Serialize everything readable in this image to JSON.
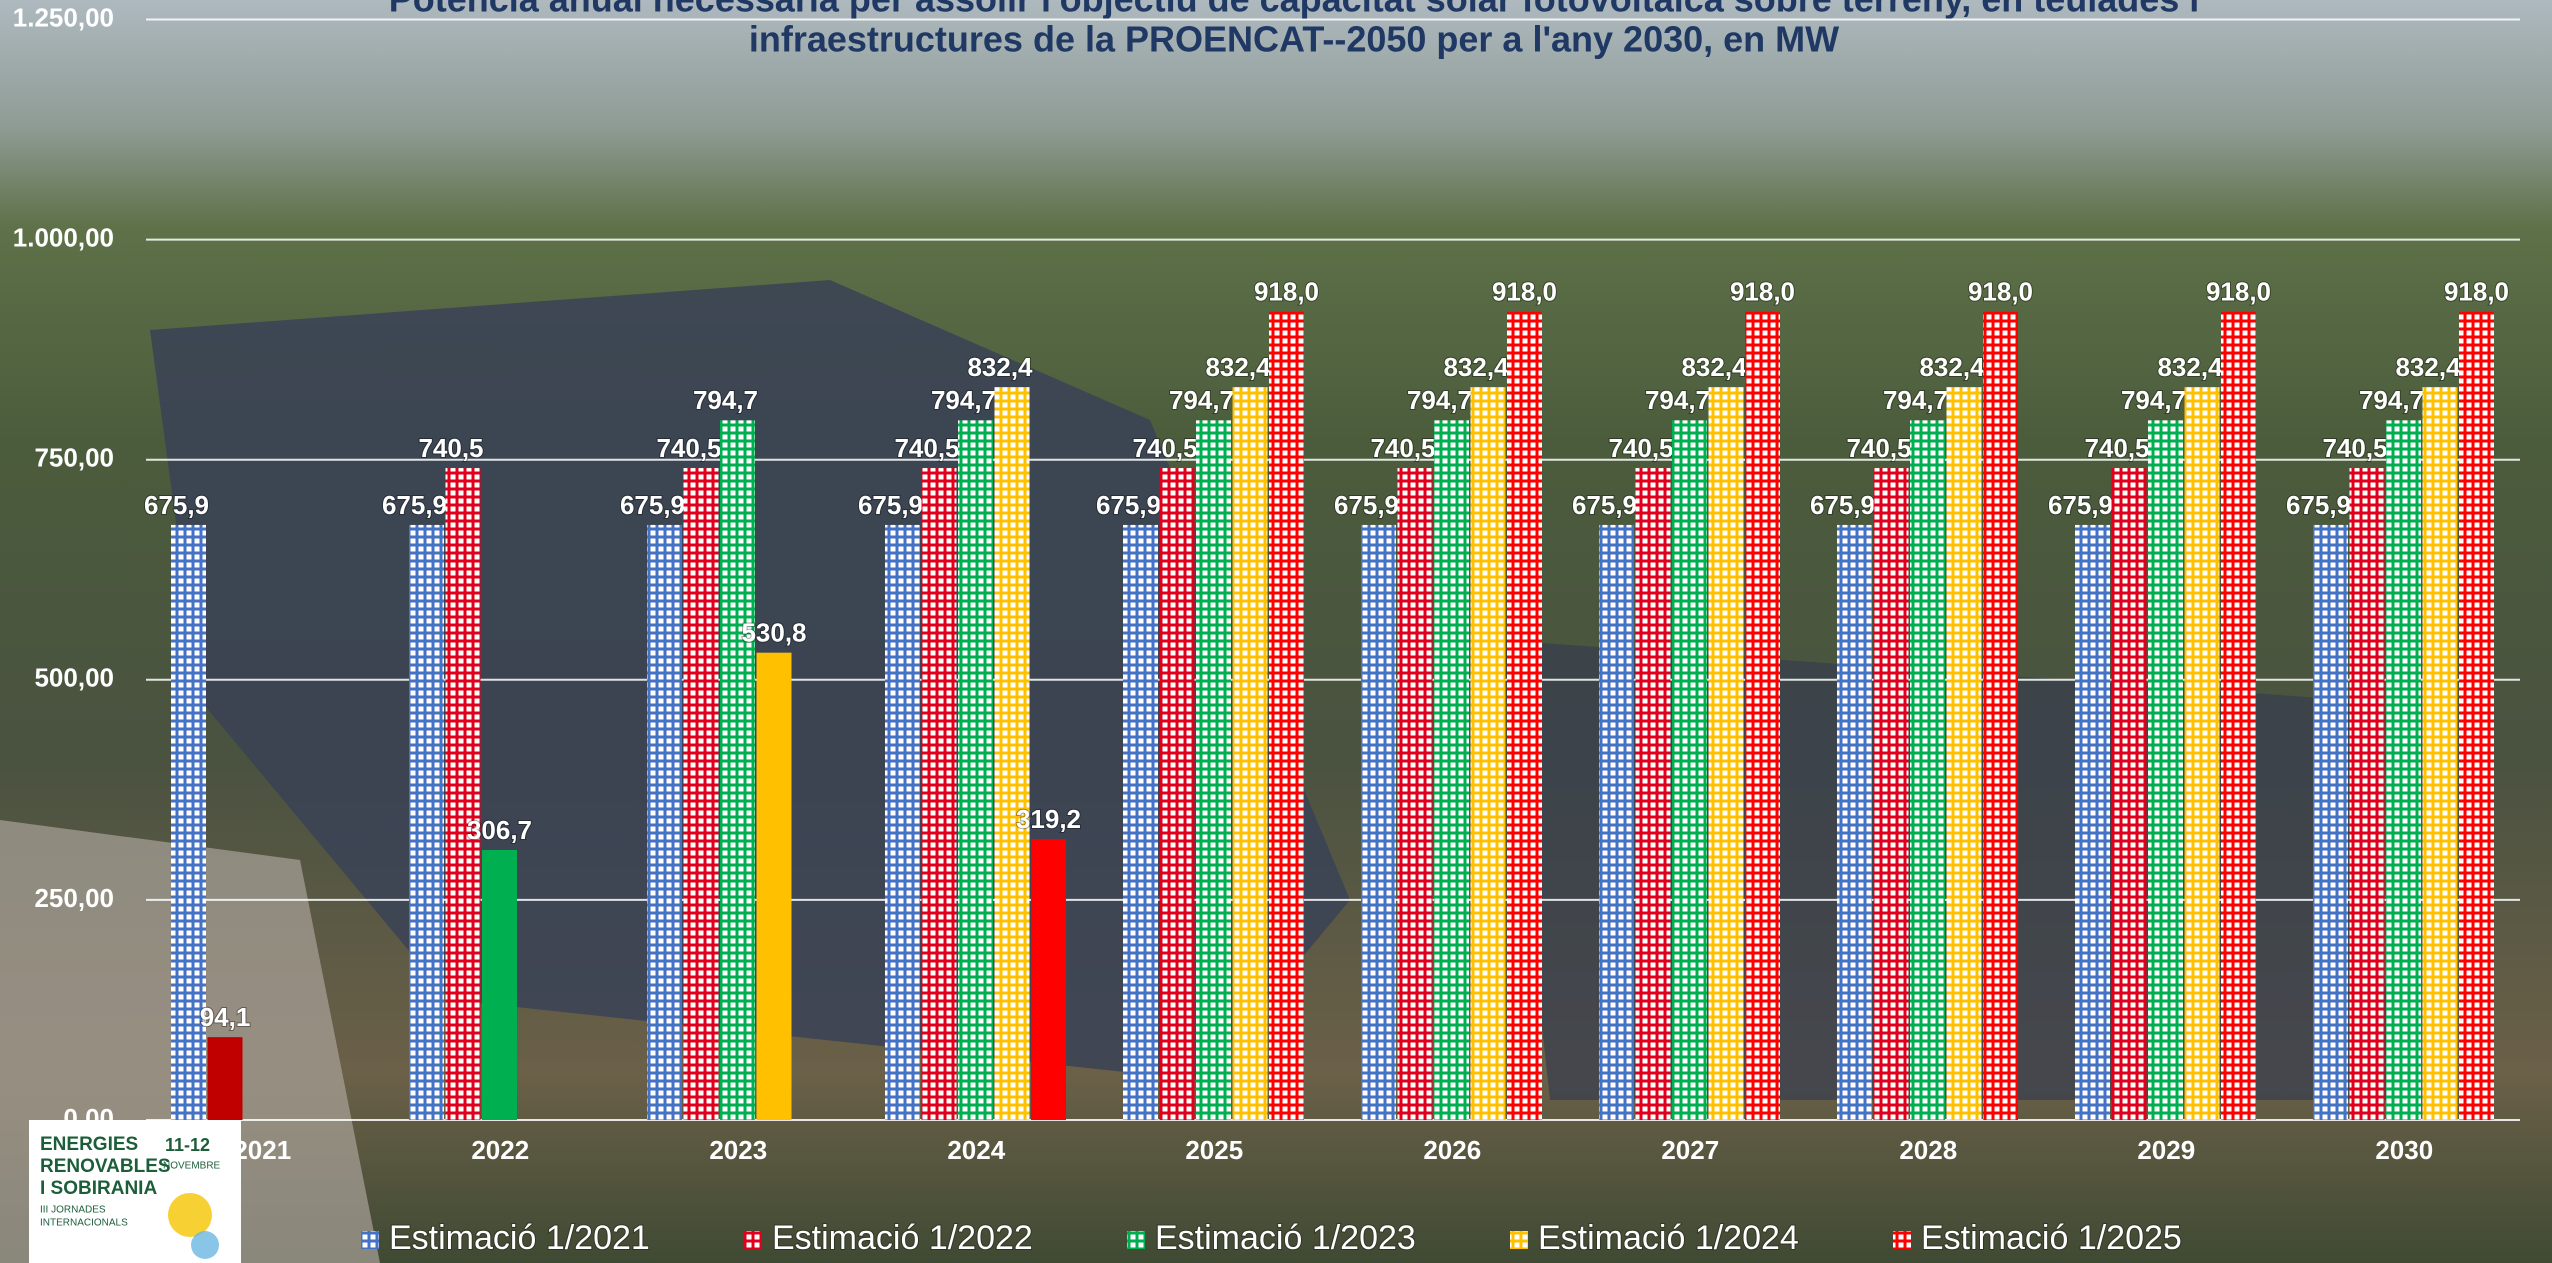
{
  "chart_data": {
    "type": "bar",
    "title_lines": [
      "Potència anual necessària per assolir l'objectiu de capacitat solar fotovoltaica sobre terreny, en teulades i",
      "infraestructures de la PROENCAT--2050 per a l'any 2030, en MW"
    ],
    "categories": [
      "2021",
      "2022",
      "2023",
      "2024",
      "2025",
      "2026",
      "2027",
      "2028",
      "2029",
      "2030"
    ],
    "series": [
      {
        "name": "Estimació 1/2021",
        "color": "#4472c4",
        "values": [
          675.9,
          675.9,
          675.9,
          675.9,
          675.9,
          675.9,
          675.9,
          675.9,
          675.9,
          675.9
        ],
        "value_labels": [
          "675,9",
          "675,9",
          "675,9",
          "675,9",
          "675,9",
          "675,9",
          "675,9",
          "675,9",
          "675,9",
          "675,9"
        ]
      },
      {
        "name": "Estimació 1/2022",
        "color": "#e0001b",
        "values": [
          null,
          740.5,
          740.5,
          740.5,
          740.5,
          740.5,
          740.5,
          740.5,
          740.5,
          740.5
        ],
        "value_labels": [
          null,
          "740,5",
          "740,5",
          "740,5",
          "740,5",
          "740,5",
          "740,5",
          "740,5",
          "740,5",
          "740,5"
        ]
      },
      {
        "name": "Estimació 1/2023",
        "color": "#00b050",
        "values": [
          null,
          null,
          794.7,
          794.7,
          794.7,
          794.7,
          794.7,
          794.7,
          794.7,
          794.7
        ],
        "value_labels": [
          null,
          null,
          "794,7",
          "794,7",
          "794,7",
          "794,7",
          "794,7",
          "794,7",
          "794,7",
          "794,7"
        ]
      },
      {
        "name": "Estimació 1/2024",
        "color": "#ffc000",
        "values": [
          null,
          null,
          null,
          832.4,
          832.4,
          832.4,
          832.4,
          832.4,
          832.4,
          832.4
        ],
        "value_labels": [
          null,
          null,
          null,
          "832,4",
          "832,4",
          "832,4",
          "832,4",
          "832,4",
          "832,4",
          "832,4"
        ]
      },
      {
        "name": "Estimació 1/2025",
        "color": "#ff0000",
        "values": [
          null,
          null,
          null,
          null,
          918.0,
          918.0,
          918.0,
          918.0,
          918.0,
          918.0
        ],
        "value_labels": [
          null,
          null,
          null,
          null,
          "918,0",
          "918,0",
          "918,0",
          "918,0",
          "918,0",
          "918,0"
        ]
      }
    ],
    "actual": {
      "values": [
        94.1,
        306.7,
        530.8,
        319.2,
        null,
        null,
        null,
        null,
        null,
        null
      ],
      "value_labels": [
        "94,1",
        "306,7",
        "530,8",
        "319,2",
        null,
        null,
        null,
        null,
        null,
        null
      ],
      "colors": [
        "#c00000",
        "#00b050",
        "#ffc000",
        "#ff0000",
        null,
        null,
        null,
        null,
        null,
        null
      ]
    },
    "ylim": [
      0,
      1250
    ],
    "yticks": [
      {
        "value": 0,
        "label": "0,00"
      },
      {
        "value": 250,
        "label": "250,00"
      },
      {
        "value": 500,
        "label": "500,00"
      },
      {
        "value": 750,
        "label": "750,00"
      },
      {
        "value": 1000,
        "label": "1.000,00"
      },
      {
        "value": 1250,
        "label": "1.250,00"
      }
    ],
    "grid": true,
    "legend": "bottom"
  },
  "logo": {
    "title_lines": [
      "ENERGIES",
      "RENOVABLES",
      "I SOBIRANIA"
    ],
    "dates": "11-12",
    "month": "NOVEMBRE",
    "subtitle_lines": [
      "III JORNADES",
      "INTERNACIONALS"
    ]
  }
}
